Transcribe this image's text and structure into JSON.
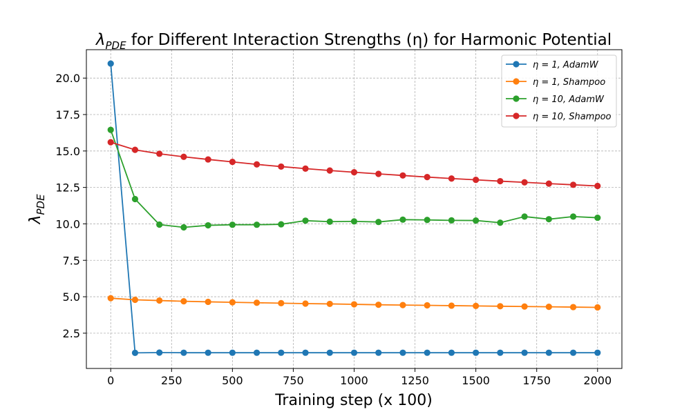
{
  "chart_data": {
    "type": "line",
    "title": "λPDE for Different Interaction Strengths (η) for Harmonic Potential",
    "title_parts": {
      "lambda": "λ",
      "sub": "PDE",
      "rest": " for Different Interaction Strengths (η) for Harmonic Potential"
    },
    "xlabel": "Training step (x 100)",
    "ylabel": "λPDE",
    "ylabel_parts": {
      "lambda": "λ",
      "sub": "PDE"
    },
    "xlim": [
      -100,
      2100
    ],
    "ylim": [
      0.08,
      21.95
    ],
    "xticks": [
      0,
      250,
      500,
      750,
      1000,
      1250,
      1500,
      1750,
      2000
    ],
    "yticks": [
      2.5,
      5.0,
      7.5,
      10.0,
      12.5,
      15.0,
      17.5,
      20.0
    ],
    "ytick_labels": [
      "2.5",
      "5.0",
      "7.5",
      "10.0",
      "12.5",
      "15.0",
      "17.5",
      "20.0"
    ],
    "grid": true,
    "legend_position": "top-right",
    "x": [
      0,
      100,
      200,
      300,
      400,
      500,
      600,
      700,
      800,
      900,
      1000,
      1100,
      1200,
      1300,
      1400,
      1500,
      1600,
      1700,
      1800,
      1900,
      2000
    ],
    "series": [
      {
        "name": "η = 1, AdamW",
        "color": "#1f77b4",
        "values": [
          21.0,
          1.15,
          1.17,
          1.16,
          1.16,
          1.16,
          1.16,
          1.16,
          1.16,
          1.16,
          1.16,
          1.16,
          1.16,
          1.16,
          1.16,
          1.16,
          1.16,
          1.16,
          1.16,
          1.16,
          1.16
        ]
      },
      {
        "name": "η = 1, Shampoo",
        "color": "#ff7f0e",
        "values": [
          4.9,
          4.79,
          4.74,
          4.69,
          4.65,
          4.62,
          4.59,
          4.56,
          4.53,
          4.51,
          4.48,
          4.45,
          4.43,
          4.41,
          4.39,
          4.37,
          4.35,
          4.33,
          4.31,
          4.29,
          4.27
        ]
      },
      {
        "name": "η = 10, AdamW",
        "color": "#2ca02c",
        "values": [
          16.45,
          11.7,
          9.95,
          9.76,
          9.9,
          9.94,
          9.94,
          9.97,
          10.22,
          10.15,
          10.17,
          10.13,
          10.29,
          10.27,
          10.24,
          10.23,
          10.08,
          10.5,
          10.32,
          10.5,
          10.42
        ]
      },
      {
        "name": "η = 10, Shampoo",
        "color": "#d62728",
        "values": [
          15.6,
          15.08,
          14.81,
          14.6,
          14.42,
          14.25,
          14.08,
          13.93,
          13.79,
          13.66,
          13.54,
          13.43,
          13.32,
          13.21,
          13.11,
          13.02,
          12.93,
          12.85,
          12.76,
          12.68,
          12.6
        ]
      }
    ]
  }
}
